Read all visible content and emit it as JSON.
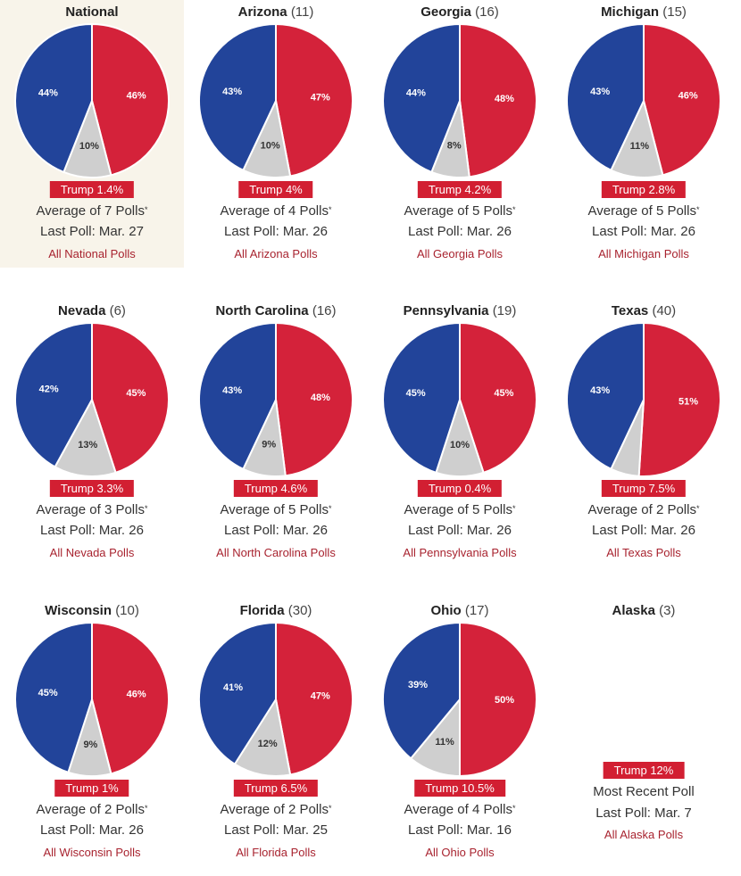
{
  "colors": {
    "dem": "#22449a",
    "rep": "#d4223a",
    "other": "#cfcfcf",
    "leader_bg": "#d21f32",
    "link": "#a8232f",
    "highlight": "#f8f4ea"
  },
  "chart_data": {
    "type": "pie",
    "legend": "none",
    "charts": [
      {
        "state": "National",
        "electoral_votes": "",
        "dem": 44,
        "rep": 46,
        "other": 10,
        "dem_label": "44%",
        "rep_label": "46%",
        "other_label": "10%",
        "leader": "Trump 1.4%",
        "avg": "Average of 7 Polls",
        "avg_mark": "*",
        "last": "Last Poll: Mar. 27",
        "link": "All National Polls",
        "highlight": true
      },
      {
        "state": "Arizona",
        "electoral_votes": "(11)",
        "dem": 43,
        "rep": 47,
        "other": 10,
        "dem_label": "43%",
        "rep_label": "47%",
        "other_label": "10%",
        "leader": "Trump 4%",
        "avg": "Average of 4 Polls",
        "avg_mark": "*",
        "last": "Last Poll: Mar. 26",
        "link": "All Arizona Polls"
      },
      {
        "state": "Georgia",
        "electoral_votes": "(16)",
        "dem": 44,
        "rep": 48,
        "other": 8,
        "dem_label": "44%",
        "rep_label": "48%",
        "other_label": "8%",
        "leader": "Trump 4.2%",
        "avg": "Average of 5 Polls",
        "avg_mark": "*",
        "last": "Last Poll: Mar. 26",
        "link": "All Georgia Polls"
      },
      {
        "state": "Michigan",
        "electoral_votes": "(15)",
        "dem": 43,
        "rep": 46,
        "other": 11,
        "dem_label": "43%",
        "rep_label": "46%",
        "other_label": "11%",
        "leader": "Trump 2.8%",
        "avg": "Average of 5 Polls",
        "avg_mark": "*",
        "last": "Last Poll: Mar. 26",
        "link": "All Michigan Polls"
      },
      {
        "state": "Nevada",
        "electoral_votes": "(6)",
        "dem": 42,
        "rep": 45,
        "other": 13,
        "dem_label": "42%",
        "rep_label": "45%",
        "other_label": "13%",
        "leader": "Trump 3.3%",
        "avg": "Average of 3 Polls",
        "avg_mark": "*",
        "last": "Last Poll: Mar. 26",
        "link": "All Nevada Polls"
      },
      {
        "state": "North Carolina",
        "electoral_votes": "(16)",
        "dem": 43,
        "rep": 48,
        "other": 9,
        "dem_label": "43%",
        "rep_label": "48%",
        "other_label": "9%",
        "leader": "Trump 4.6%",
        "avg": "Average of 5 Polls",
        "avg_mark": "*",
        "last": "Last Poll: Mar. 26",
        "link": "All North Carolina Polls"
      },
      {
        "state": "Pennsylvania",
        "electoral_votes": "(19)",
        "dem": 45,
        "rep": 45,
        "other": 10,
        "dem_label": "45%",
        "rep_label": "45%",
        "other_label": "10%",
        "leader": "Trump 0.4%",
        "avg": "Average of 5 Polls",
        "avg_mark": "*",
        "last": "Last Poll: Mar. 26",
        "link": "All Pennsylvania Polls"
      },
      {
        "state": "Texas",
        "electoral_votes": "(40)",
        "dem": 43,
        "rep": 51,
        "other": 6,
        "dem_label": "43%",
        "rep_label": "51%",
        "other_label": "",
        "leader": "Trump 7.5%",
        "avg": "Average of 2 Polls",
        "avg_mark": "*",
        "last": "Last Poll: Mar. 26",
        "link": "All Texas Polls"
      },
      {
        "state": "Wisconsin",
        "electoral_votes": "(10)",
        "dem": 45,
        "rep": 46,
        "other": 9,
        "dem_label": "45%",
        "rep_label": "46%",
        "other_label": "9%",
        "leader": "Trump 1%",
        "avg": "Average of 2 Polls",
        "avg_mark": "*",
        "last": "Last Poll: Mar. 26",
        "link": "All Wisconsin Polls"
      },
      {
        "state": "Florida",
        "electoral_votes": "(30)",
        "dem": 41,
        "rep": 47,
        "other": 12,
        "dem_label": "41%",
        "rep_label": "47%",
        "other_label": "12%",
        "leader": "Trump 6.5%",
        "avg": "Average of 2 Polls",
        "avg_mark": "*",
        "last": "Last Poll: Mar. 25",
        "link": "All Florida Polls"
      },
      {
        "state": "Ohio",
        "electoral_votes": "(17)",
        "dem": 39,
        "rep": 50,
        "other": 11,
        "dem_label": "39%",
        "rep_label": "50%",
        "other_label": "11%",
        "leader": "Trump 10.5%",
        "avg": "Average of 4 Polls",
        "avg_mark": "*",
        "last": "Last Poll: Mar. 16",
        "link": "All Ohio Polls"
      },
      {
        "state": "Alaska",
        "electoral_votes": "(3)",
        "no_pie": true,
        "leader": "Trump 12%",
        "avg": "Most Recent Poll",
        "avg_mark": "",
        "last": "Last Poll: Mar. 7",
        "link": "All Alaska Polls"
      }
    ]
  }
}
